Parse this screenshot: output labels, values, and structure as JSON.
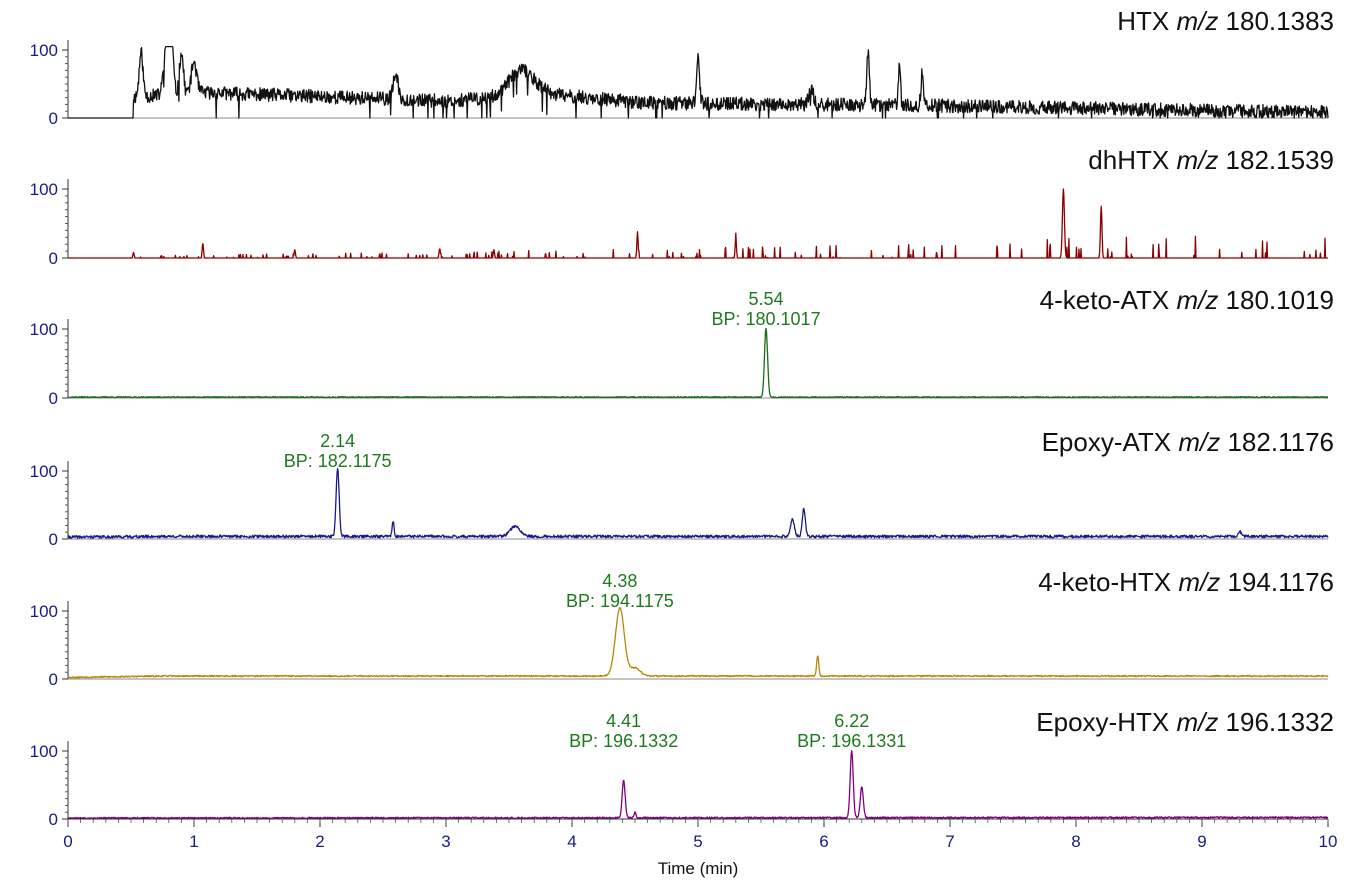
{
  "chart_data": {
    "type": "line",
    "xlabel": "Time (min)",
    "xlim": [
      0,
      10
    ],
    "x_ticks": [
      "0",
      "1",
      "2",
      "3",
      "4",
      "5",
      "6",
      "7",
      "8",
      "9",
      "10"
    ],
    "panels": [
      {
        "compound": "HTX",
        "mz_label": "m/z",
        "mz_value": "180.1383",
        "color": "#111111",
        "ylim": [
          0,
          100
        ],
        "y_ticks": [
          "0",
          "100"
        ],
        "trace": {
          "seed": 11,
          "start": 0.52,
          "noise_base": 30,
          "noise_amp": 10,
          "spiky": true,
          "peaks": [
            [
              0.58,
              65,
              0.015
            ],
            [
              0.78,
              75,
              0.02
            ],
            [
              0.82,
              90,
              0.015
            ],
            [
              0.9,
              60,
              0.015
            ],
            [
              1.0,
              45,
              0.02
            ],
            [
              2.6,
              35,
              0.02
            ],
            [
              3.6,
              38,
              0.1
            ],
            [
              5.0,
              70,
              0.012
            ],
            [
              5.9,
              20,
              0.02
            ],
            [
              6.35,
              80,
              0.01
            ],
            [
              6.6,
              60,
              0.01
            ],
            [
              6.78,
              50,
              0.01
            ]
          ],
          "trend": [
            [
              0.5,
              30
            ],
            [
              1.0,
              38
            ],
            [
              3.0,
              25
            ],
            [
              3.8,
              35
            ],
            [
              4.6,
              22
            ],
            [
              6.9,
              18
            ],
            [
              10,
              8
            ]
          ]
        },
        "peak_labels": []
      },
      {
        "compound": "dhHTX",
        "mz_label": "m/z",
        "mz_value": "182.1539",
        "color": "#8b0000",
        "ylim": [
          0,
          100
        ],
        "y_ticks": [
          "0",
          "100"
        ],
        "trace": {
          "seed": 23,
          "start": 0.5,
          "noise_base": 0,
          "noise_amp": 0,
          "spiky": true,
          "spike_density": 0.06,
          "peaks": [
            [
              0.52,
              8,
              0.005
            ],
            [
              1.07,
              22,
              0.005
            ],
            [
              1.8,
              12,
              0.005
            ],
            [
              2.95,
              14,
              0.005
            ],
            [
              3.38,
              12,
              0.005
            ],
            [
              4.52,
              38,
              0.005
            ],
            [
              5.3,
              30,
              0.005
            ],
            [
              7.9,
              100,
              0.008
            ],
            [
              8.2,
              75,
              0.006
            ]
          ],
          "trend": [
            [
              0.5,
              2
            ],
            [
              4.5,
              8
            ],
            [
              6.5,
              15
            ],
            [
              10,
              22
            ]
          ]
        },
        "peak_labels": []
      },
      {
        "compound": "4-keto-ATX",
        "mz_label": "m/z",
        "mz_value": "180.1019",
        "color": "#1a6b1a",
        "ylim": [
          0,
          100
        ],
        "y_ticks": [
          "0",
          "100"
        ],
        "trace": {
          "seed": 37,
          "start": 0,
          "noise_base": 0.5,
          "noise_amp": 1.5,
          "spiky": false,
          "peaks": [
            [
              5.54,
              100,
              0.012
            ]
          ],
          "trend": [
            [
              0,
              1
            ],
            [
              10,
              1
            ]
          ]
        },
        "peak_labels": [
          {
            "rt": "5.54",
            "bp": "BP: 180.1017",
            "x": 5.54
          }
        ]
      },
      {
        "compound": "Epoxy-ATX",
        "mz_label": "m/z",
        "mz_value": "182.1176",
        "color": "#1a1a8c",
        "ylim": [
          0,
          100
        ],
        "y_ticks": [
          "0",
          "100"
        ],
        "trace": {
          "seed": 41,
          "start": 0,
          "noise_base": 3,
          "noise_amp": 4,
          "spiky": false,
          "peaks": [
            [
              2.14,
              100,
              0.012
            ],
            [
              2.58,
              22,
              0.008
            ],
            [
              3.55,
              15,
              0.04
            ],
            [
              5.75,
              25,
              0.015
            ],
            [
              5.84,
              40,
              0.012
            ],
            [
              9.3,
              8,
              0.01
            ]
          ],
          "trend": [
            [
              0,
              2
            ],
            [
              0.78,
              3
            ],
            [
              10,
              3
            ]
          ]
        },
        "peak_labels": [
          {
            "rt": "2.14",
            "bp": "BP: 182.1175",
            "x": 2.14
          }
        ]
      },
      {
        "compound": "4-keto-HTX",
        "mz_label": "m/z",
        "mz_value": "194.1176",
        "color": "#b8860b",
        "ylim": [
          0,
          100
        ],
        "y_ticks": [
          "0",
          "100"
        ],
        "trace": {
          "seed": 53,
          "start": 0,
          "noise_base": 3,
          "noise_amp": 2,
          "spiky": false,
          "peaks": [
            [
              4.38,
              100,
              0.035
            ],
            [
              4.5,
              12,
              0.04
            ],
            [
              5.95,
              30,
              0.008
            ]
          ],
          "trend": [
            [
              0,
              2
            ],
            [
              0.77,
              4
            ],
            [
              10,
              4
            ]
          ]
        },
        "peak_labels": [
          {
            "rt": "4.38",
            "bp": "BP: 194.1175",
            "x": 4.38
          }
        ]
      },
      {
        "compound": "Epoxy-HTX",
        "mz_label": "m/z",
        "mz_value": "196.1332",
        "color": "#800080",
        "ylim": [
          0,
          100
        ],
        "y_ticks": [
          "0",
          "100"
        ],
        "trace": {
          "seed": 67,
          "start": 0,
          "noise_base": 1,
          "noise_amp": 2,
          "spiky": false,
          "peaks": [
            [
              4.41,
              55,
              0.012
            ],
            [
              4.5,
              8,
              0.008
            ],
            [
              6.22,
              98,
              0.012
            ],
            [
              6.3,
              45,
              0.012
            ]
          ],
          "trend": [
            [
              0,
              1
            ],
            [
              10,
              2
            ]
          ]
        },
        "peak_labels": [
          {
            "rt": "4.41",
            "bp": "BP: 196.1332",
            "x": 4.41
          },
          {
            "rt": "6.22",
            "bp": "BP: 196.1331",
            "x": 6.22
          }
        ]
      }
    ]
  }
}
